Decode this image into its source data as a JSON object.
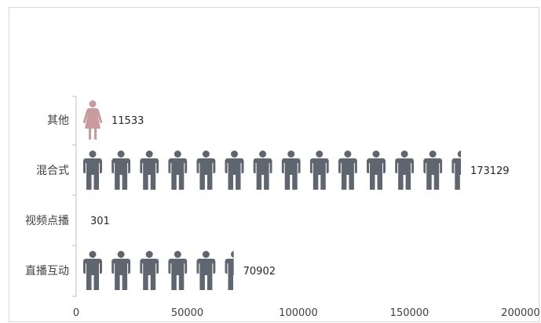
{
  "chart_data": {
    "type": "bar",
    "orientation": "horizontal",
    "style": "pictograph",
    "categories": [
      "直播互动",
      "视频点播",
      "混合式",
      "其他"
    ],
    "values": [
      70902,
      301,
      173129,
      11533
    ],
    "data_labels": [
      "70902",
      "301",
      "173129",
      "11533"
    ],
    "unit_per_icon": 12500,
    "xlim": [
      0,
      200000
    ],
    "x_ticks": [
      0,
      50000,
      100000,
      150000,
      200000
    ],
    "x_tick_labels": [
      "0",
      "50000",
      "100000",
      "150000",
      "200000"
    ],
    "grid": false,
    "legend": "none",
    "colors": {
      "default_icon": "#5f6670",
      "highlight_icon": "#c99a9b",
      "axis": "#bfbfbf"
    },
    "icons": [
      "male-person-icon",
      "male-person-icon",
      "male-person-icon",
      "female-person-icon"
    ]
  }
}
